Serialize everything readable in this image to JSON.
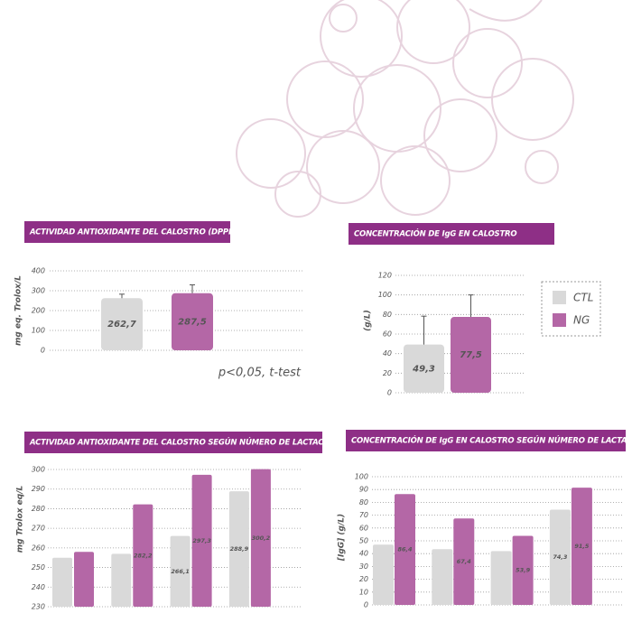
{
  "chart_data": [
    {
      "type": "bar",
      "title": "ACTIVIDAD ANTIOXIDANTE DEL CALOSTRO (DPPH)",
      "y_label": "mg eq. Trolox/L",
      "categories": [
        null
      ],
      "series": [
        {
          "color": "#d9d9d9",
          "values": [
            262.7
          ],
          "value_labels": [
            "262,7"
          ],
          "errors": [
            20
          ]
        },
        {
          "color": "#b467a6",
          "values": [
            287.5
          ],
          "value_labels": [
            "287,5"
          ],
          "errors": [
            42
          ]
        }
      ],
      "ylim": [
        0,
        400
      ],
      "yticks": [
        0,
        100,
        200,
        300,
        400
      ],
      "grid": true,
      "annotation": "p<0,05, t-test"
    },
    {
      "type": "bar",
      "title": "CONCENTRACIÓN DE IgG EN CALOSTRO",
      "y_label": "(g/L)",
      "categories": [
        null
      ],
      "series": [
        {
          "name": "CTL",
          "color": "#d9d9d9",
          "values": [
            49.3
          ],
          "value_labels": [
            "49,3"
          ],
          "errors": [
            29
          ]
        },
        {
          "name": "NG",
          "color": "#b467a6",
          "values": [
            77.5
          ],
          "value_labels": [
            "77,5"
          ],
          "errors": [
            22.5
          ]
        }
      ],
      "ylim": [
        0,
        120
      ],
      "yticks": [
        0,
        20,
        40,
        60,
        80,
        100,
        120
      ],
      "grid": true,
      "legend": "right"
    },
    {
      "type": "bar",
      "title": "ACTIVIDAD ANTIOXIDANTE DEL CALOSTRO SEGÚN NÚMERO DE LACTACIONES",
      "y_label": "mg Trolox eq/L",
      "categories": [
        null,
        null,
        null,
        null
      ],
      "series": [
        {
          "color": "#d9d9d9",
          "values": [
            255,
            257,
            266.1,
            288.9
          ],
          "value_labels": [
            null,
            null,
            "266,1",
            "288,9"
          ]
        },
        {
          "color": "#b467a6",
          "values": [
            258,
            282.2,
            297.3,
            300.2
          ],
          "value_labels": [
            null,
            "282,2",
            "297,3",
            "300,2"
          ]
        }
      ],
      "ylim": [
        230,
        300
      ],
      "yticks": [
        230,
        240,
        250,
        260,
        270,
        280,
        290,
        300
      ],
      "grid": true
    },
    {
      "type": "bar",
      "title": "CONCENTRACIÓN DE IgG EN CALOSTRO SEGÚN NÚMERO DE LACTACIONES",
      "y_label": "[IgG] (g/L)",
      "categories": [
        null,
        null,
        null,
        null
      ],
      "series": [
        {
          "color": "#d9d9d9",
          "values": [
            47,
            43.5,
            42,
            74.3
          ],
          "value_labels": [
            null,
            null,
            null,
            "74,3"
          ]
        },
        {
          "color": "#b467a6",
          "values": [
            86.4,
            67.4,
            53.9,
            91.5
          ],
          "value_labels": [
            "86,4",
            "67,4",
            "53,9",
            "91,5"
          ]
        }
      ],
      "ylim": [
        0,
        100
      ],
      "yticks": [
        0,
        10,
        20,
        30,
        40,
        50,
        60,
        70,
        80,
        90,
        100
      ],
      "grid": true
    }
  ]
}
